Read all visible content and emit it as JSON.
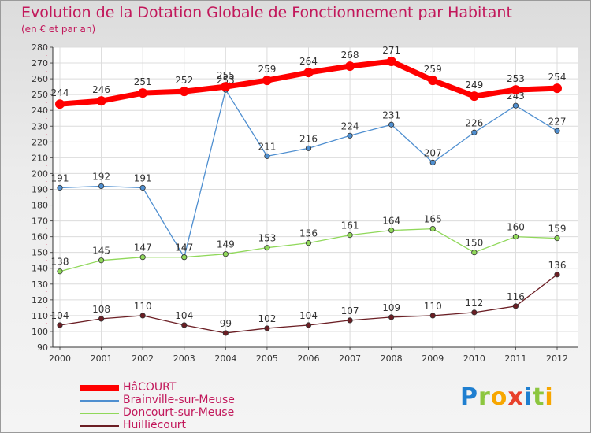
{
  "chart_data": {
    "type": "line",
    "title": "Evolution de la Dotation Globale de Fonctionnement par Habitant",
    "subtitle": "(en € et par an)",
    "x": [
      "2000",
      "2001",
      "2002",
      "2003",
      "2004",
      "2005",
      "2006",
      "2007",
      "2008",
      "2009",
      "2010",
      "2011",
      "2012"
    ],
    "ylim": [
      90,
      280
    ],
    "ytick_step": 10,
    "grid": true,
    "legend_position": "bottom-left",
    "series": [
      {
        "name": "HâCOURT",
        "color": "#ff0000",
        "values": [
          244,
          246,
          251,
          252,
          255,
          259,
          264,
          268,
          271,
          259,
          249,
          253,
          254
        ]
      },
      {
        "name": "Brainville-sur-Meuse",
        "color": "#4f8fd0",
        "values": [
          191,
          192,
          191,
          147,
          253,
          211,
          216,
          224,
          231,
          207,
          226,
          243,
          227
        ]
      },
      {
        "name": "Doncourt-sur-Meuse",
        "color": "#90d85a",
        "values": [
          138,
          145,
          147,
          147,
          149,
          153,
          156,
          161,
          164,
          165,
          150,
          160,
          159
        ]
      },
      {
        "name": "Huilliécourt",
        "color": "#6b1e24",
        "values": [
          104,
          108,
          110,
          104,
          99,
          102,
          104,
          107,
          109,
          110,
          112,
          116,
          136
        ]
      }
    ]
  },
  "logo": {
    "text": "Proxiti",
    "letters": [
      "P",
      "r",
      "o",
      "x",
      "i",
      "t",
      "i"
    ],
    "colors": [
      "#1f7fd0",
      "#8cc63f",
      "#f7a600",
      "#e8412c",
      "#1f7fd0",
      "#8cc63f",
      "#f7a600"
    ]
  }
}
